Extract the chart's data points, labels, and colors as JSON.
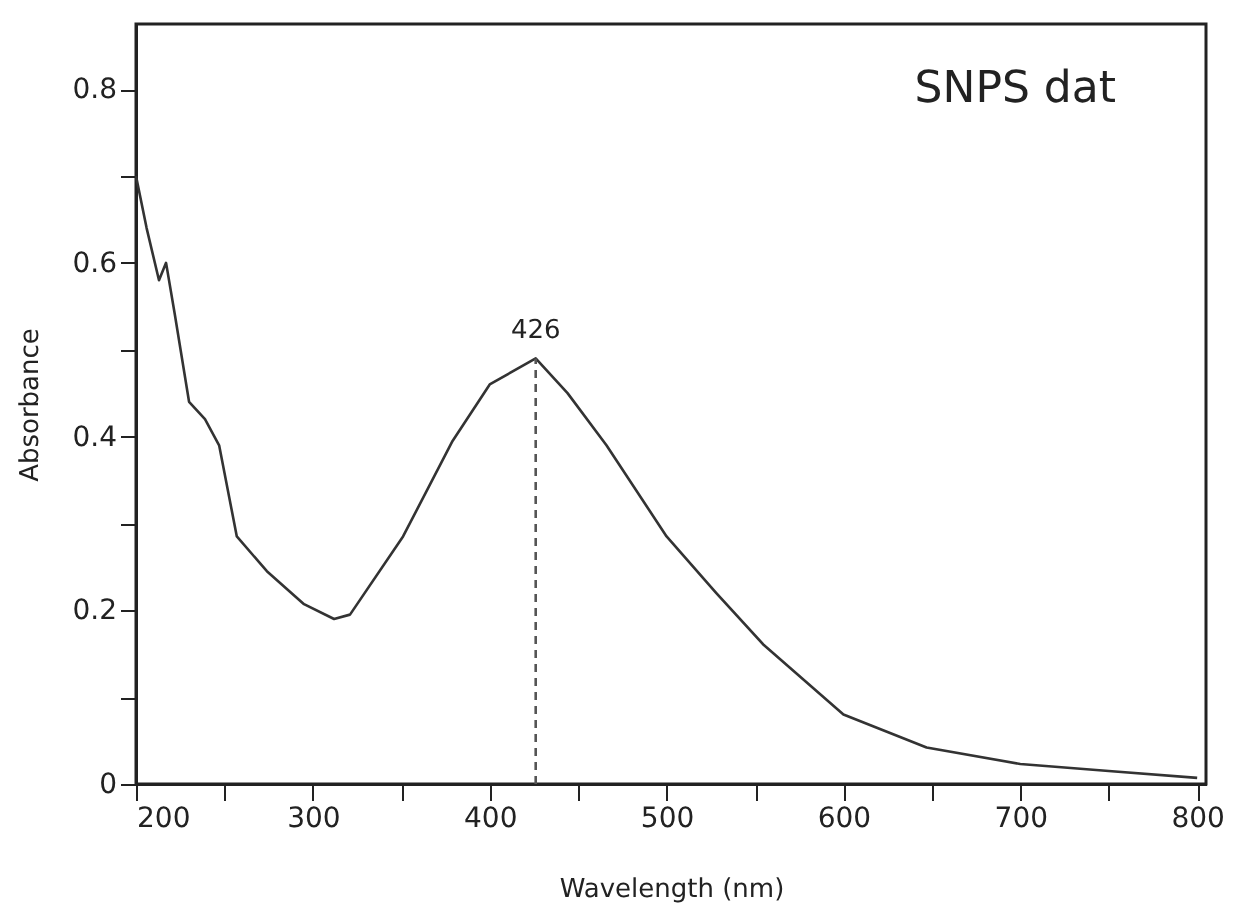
{
  "chart_data": {
    "type": "line",
    "xlabel": "Wavelength (nm)",
    "ylabel": "Absorbance",
    "xlim": [
      200,
      805
    ],
    "ylim": [
      0,
      0.875
    ],
    "xticks": [
      200,
      {
        "value": 250,
        "label": null
      },
      300,
      {
        "value": 350,
        "label": null
      },
      400,
      {
        "value": 450,
        "label": null
      },
      500,
      {
        "value": 550,
        "label": null
      },
      600,
      {
        "value": 650,
        "label": null
      },
      700,
      {
        "value": 750,
        "label": null
      },
      800
    ],
    "yticks": [
      0,
      {
        "value": 0.1,
        "label": null
      },
      0.2,
      {
        "value": 0.3,
        "label": null
      },
      0.4,
      {
        "value": 0.5,
        "label": null
      },
      0.6,
      {
        "value": 0.7,
        "label": null
      },
      0.8
    ],
    "grid": false,
    "series": [
      {
        "color": "#333333",
        "line_style": "solid",
        "x": [
          200,
          206,
          213,
          217,
          222,
          230,
          239,
          247,
          257,
          274,
          295,
          312,
          321,
          351,
          379,
          400,
          426,
          444,
          466,
          500,
          528,
          555,
          600,
          647,
          700,
          750,
          800
        ],
        "values": [
          0.7,
          0.64,
          0.58,
          0.6,
          0.54,
          0.44,
          0.42,
          0.39,
          0.285,
          0.245,
          0.207,
          0.19,
          0.195,
          0.285,
          0.395,
          0.46,
          0.49,
          0.45,
          0.39,
          0.285,
          0.22,
          0.16,
          0.08,
          0.042,
          0.023,
          0.015,
          0.007
        ]
      },
      {
        "type": "line",
        "color": "#555555",
        "line_style": "dashed",
        "x": [
          426,
          426
        ],
        "values": [
          0,
          0.49
        ]
      }
    ],
    "annotations": [
      {
        "text": "426",
        "x": 426,
        "y": 0.49
      },
      "SNPS dat"
    ]
  }
}
